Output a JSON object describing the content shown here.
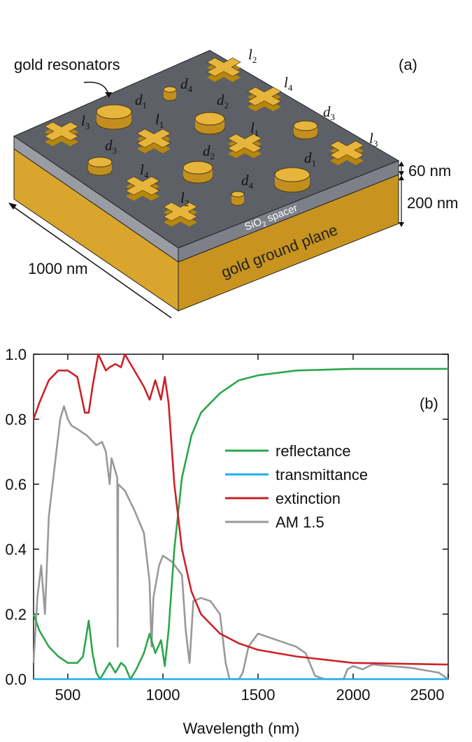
{
  "diagram": {
    "caption": "gold resonators",
    "panel": "(a)",
    "spacer_thickness": "60 nm",
    "ground_thickness": "200 nm",
    "period": "1000 nm",
    "spacer": {
      "pre": "SiO",
      "sub": "2",
      "post": " spacer"
    },
    "ground": "gold ground plane",
    "labels": [
      {
        "letter": "d",
        "sub": "1"
      },
      {
        "letter": "d",
        "sub": "4"
      },
      {
        "letter": "l",
        "sub": "2"
      },
      {
        "letter": "l",
        "sub": "4"
      },
      {
        "letter": "d",
        "sub": "2"
      },
      {
        "letter": "d",
        "sub": "3"
      },
      {
        "letter": "l",
        "sub": "3"
      },
      {
        "letter": "l",
        "sub": "1"
      },
      {
        "letter": "l",
        "sub": "1"
      },
      {
        "letter": "d",
        "sub": "3"
      },
      {
        "letter": "d",
        "sub": "2"
      },
      {
        "letter": "d",
        "sub": "1"
      },
      {
        "letter": "l",
        "sub": "3"
      },
      {
        "letter": "l",
        "sub": "4"
      },
      {
        "letter": "d",
        "sub": "4"
      },
      {
        "letter": "l",
        "sub": "2"
      }
    ]
  },
  "chart_data": {
    "type": "line",
    "annotation": "(b)",
    "x_label": "Wavelength (nm)",
    "xlim": [
      320,
      2500
    ],
    "xticks": [
      500,
      1000,
      1500,
      2000,
      2500
    ],
    "ylim": [
      0,
      1
    ],
    "yticks": [
      {
        "value": 0,
        "label": "0.0"
      },
      0.2,
      0.4,
      0.6,
      0.8,
      {
        "value": 1,
        "label": "1.0"
      }
    ],
    "legend": "right",
    "series": [
      {
        "name": "reflectance",
        "color": "#2ca64a",
        "x": [
          320,
          350,
          400,
          450,
          500,
          550,
          580,
          610,
          630,
          650,
          670,
          700,
          720,
          750,
          780,
          800,
          830,
          860,
          900,
          930,
          960,
          990,
          1010,
          1030,
          1060,
          1100,
          1150,
          1200,
          1300,
          1400,
          1500,
          1700,
          2000,
          2500
        ],
        "values": [
          0.2,
          0.15,
          0.1,
          0.07,
          0.05,
          0.05,
          0.07,
          0.18,
          0.08,
          0.02,
          0,
          0.03,
          0.05,
          0.02,
          0.05,
          0.04,
          0,
          0.03,
          0.08,
          0.14,
          0.08,
          0.12,
          0.04,
          0.15,
          0.4,
          0.62,
          0.75,
          0.82,
          0.88,
          0.92,
          0.935,
          0.95,
          0.955,
          0.955
        ]
      },
      {
        "name": "transmittance",
        "color": "#1ab0e8",
        "x": [
          320,
          2500
        ],
        "values": [
          0,
          0
        ]
      },
      {
        "name": "extinction",
        "color": "#cc2229",
        "x": [
          320,
          350,
          400,
          450,
          500,
          550,
          590,
          610,
          630,
          660,
          700,
          720,
          750,
          780,
          800,
          830,
          870,
          900,
          930,
          960,
          990,
          1010,
          1030,
          1060,
          1100,
          1150,
          1200,
          1300,
          1400,
          1500,
          1700,
          2000,
          2500
        ],
        "values": [
          0.8,
          0.85,
          0.92,
          0.95,
          0.95,
          0.93,
          0.82,
          0.82,
          0.9,
          1,
          0.95,
          0.96,
          0.97,
          0.96,
          1,
          0.97,
          0.93,
          0.9,
          0.86,
          0.92,
          0.86,
          0.93,
          0.85,
          0.6,
          0.4,
          0.27,
          0.2,
          0.14,
          0.11,
          0.09,
          0.07,
          0.05,
          0.045
        ]
      },
      {
        "name": "AM 1.5",
        "color": "#999999",
        "x": [
          320,
          340,
          360,
          380,
          400,
          420,
          440,
          460,
          480,
          500,
          520,
          550,
          600,
          650,
          680,
          700,
          720,
          730,
          760,
          762,
          765,
          800,
          850,
          900,
          930,
          940,
          950,
          980,
          1000,
          1050,
          1100,
          1120,
          1140,
          1160,
          1200,
          1250,
          1300,
          1330,
          1350,
          1400,
          1420,
          1450,
          1500,
          1550,
          1600,
          1700,
          1750,
          1800,
          1850,
          1950,
          1970,
          2000,
          2050,
          2100,
          2200,
          2300,
          2400,
          2450,
          2500
        ],
        "values": [
          0.05,
          0.25,
          0.35,
          0.2,
          0.5,
          0.6,
          0.7,
          0.8,
          0.84,
          0.8,
          0.78,
          0.77,
          0.75,
          0.72,
          0.73,
          0.7,
          0.6,
          0.68,
          0.62,
          0.1,
          0.6,
          0.58,
          0.52,
          0.45,
          0.3,
          0.1,
          0.25,
          0.35,
          0.38,
          0.36,
          0.32,
          0.15,
          0.05,
          0.24,
          0.25,
          0.24,
          0.2,
          0.05,
          0,
          0,
          0.02,
          0.1,
          0.14,
          0.13,
          0.12,
          0.1,
          0.08,
          0.01,
          0,
          0,
          0.03,
          0.04,
          0.03,
          0.045,
          0.04,
          0.035,
          0.025,
          0.02,
          0
        ]
      }
    ]
  }
}
